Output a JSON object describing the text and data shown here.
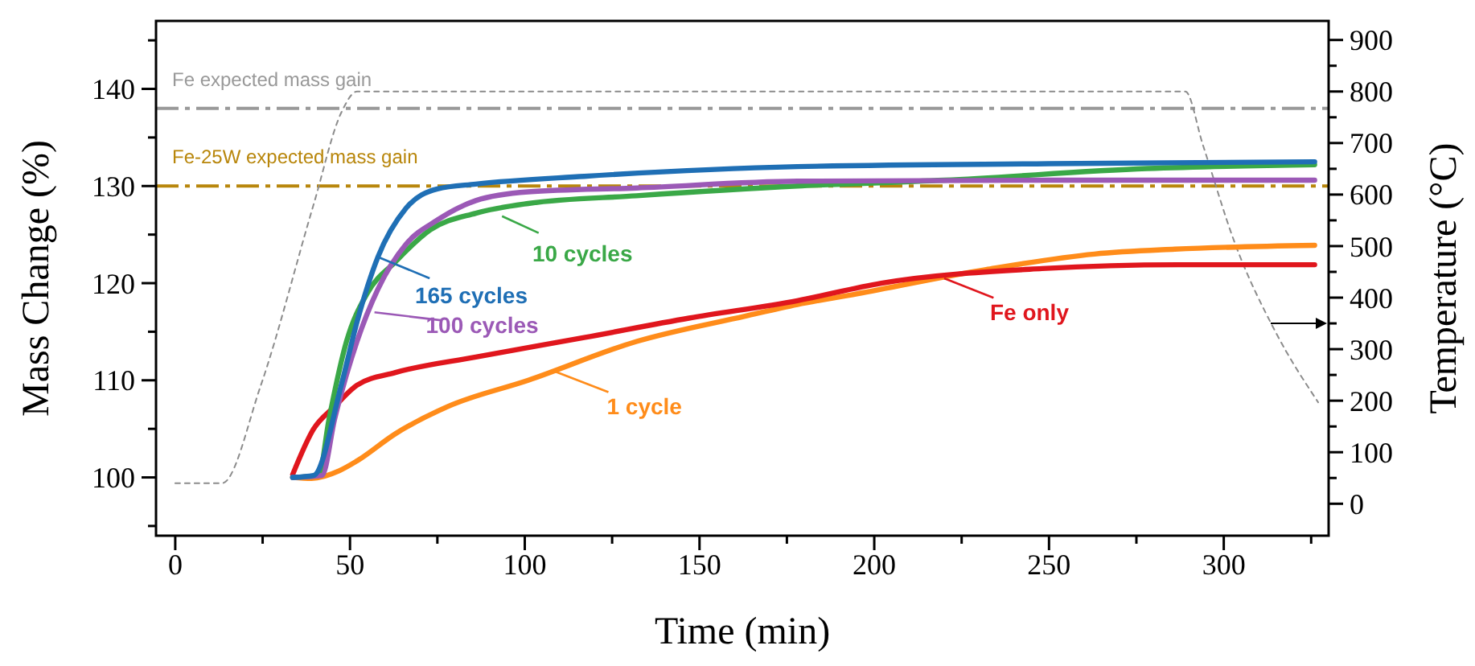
{
  "chart_data": {
    "type": "line",
    "xlabel": "Time (min)",
    "ylabel": "Mass Change (%)",
    "y2label": "Temperature (°C)",
    "xlim": [
      -5.5,
      330
    ],
    "xticks": [
      0,
      {
        "value": 25,
        "label": null
      },
      50,
      {
        "value": 75,
        "label": null
      },
      100,
      {
        "value": 125,
        "label": null
      },
      150,
      {
        "value": 175,
        "label": null
      },
      200,
      {
        "value": 225,
        "label": null
      },
      250,
      {
        "value": 275,
        "label": null
      },
      300,
      {
        "value": 325,
        "label": null
      }
    ],
    "ylim": [
      94,
      147
    ],
    "yticks": [
      {
        "value": 95,
        "label": null
      },
      100,
      {
        "value": 105,
        "label": null
      },
      110,
      {
        "value": 115,
        "label": null
      },
      120,
      {
        "value": 125,
        "label": null
      },
      130,
      {
        "value": 135,
        "label": null
      },
      140,
      {
        "value": 145,
        "label": null
      }
    ],
    "y2lim": [
      -62,
      937
    ],
    "y2ticks": [
      0,
      {
        "value": 50,
        "label": null
      },
      100,
      {
        "value": 150,
        "label": null
      },
      200,
      {
        "value": 250,
        "label": null
      },
      300,
      {
        "value": 350,
        "label": null
      },
      400,
      {
        "value": 450,
        "label": null
      },
      500,
      {
        "value": 550,
        "label": null
      },
      600,
      {
        "value": 650,
        "label": null
      },
      700,
      {
        "value": 750,
        "label": null
      },
      800,
      {
        "value": 850,
        "label": null
      },
      900
    ],
    "grid": false,
    "marker": "none",
    "ref_lines": [
      {
        "axis": "y",
        "value": 138,
        "label": "Fe expected mass gain",
        "color": "#999999",
        "line_style": "dashed"
      },
      {
        "axis": "y",
        "value": 130,
        "label": "Fe-25W expected mass gain",
        "color": "#b8860b",
        "line_style": "dashed"
      }
    ],
    "series": [
      {
        "type": "line",
        "axis": "y2",
        "color": "#8c8c8c",
        "line_style": "dotted",
        "x": [
          0,
          13.4,
          24.4,
          39.6,
          47.5,
          52,
          289,
          294,
          303,
          315,
          327
        ],
        "values": [
          40,
          40,
          228,
          581,
          759,
          800,
          800,
          697,
          509,
          331,
          197
        ]
      },
      {
        "color": "#ff8c1a",
        "x": [
          33.6,
          39,
          47,
          52,
          63,
          78,
          101,
          132,
          163,
          178,
          195,
          232,
          263,
          286,
          326
        ],
        "values": [
          100,
          99.9,
          100.7,
          101.7,
          104.5,
          107.3,
          110,
          114,
          116.6,
          117.8,
          118.9,
          121.4,
          123,
          123.5,
          123.9
        ]
      },
      {
        "color": "#e0161d",
        "x": [
          33.6,
          39.6,
          45.6,
          52,
          63,
          86,
          117,
          147,
          178,
          202,
          248,
          287,
          326
        ],
        "values": [
          100.3,
          105,
          107.3,
          109.5,
          110.8,
          112.4,
          114.4,
          116.4,
          118.2,
          120,
          121.5,
          121.9,
          121.9
        ]
      },
      {
        "color": "#3aa847",
        "x": [
          33.6,
          41,
          44,
          49,
          55,
          63,
          73,
          86,
          101,
          132,
          178,
          220,
          278,
          326
        ],
        "values": [
          100,
          100.2,
          106,
          114,
          119,
          122.2,
          125.5,
          127.2,
          128.2,
          129,
          130,
          130.6,
          131.8,
          132.2
        ]
      },
      {
        "color": "#9b59b6",
        "x": [
          33.6,
          42,
          45.6,
          52,
          58,
          66,
          75,
          86,
          101,
          132,
          178,
          250,
          326
        ],
        "values": [
          100,
          100.2,
          106,
          114,
          119.4,
          124,
          126.5,
          128.5,
          129.4,
          129.8,
          130.5,
          130.6,
          130.6
        ]
      },
      {
        "color": "#1f6fb5",
        "x": [
          33.6,
          39.6,
          47.5,
          52,
          58,
          66,
          75,
          86,
          117,
          178,
          250,
          326
        ],
        "values": [
          100,
          100.2,
          109.5,
          116,
          122.7,
          127.7,
          129.7,
          130.2,
          131,
          132,
          132.3,
          132.5
        ]
      }
    ],
    "annotations": [
      {
        "text": "1 cycle",
        "x": 108,
        "y": 111
      },
      {
        "text": "Fe only",
        "x": 220,
        "y": 120.5
      },
      {
        "text": "10 cycles",
        "x": 93.5,
        "y": 126.9
      },
      {
        "text": "100 cycles",
        "x": 57,
        "y": 117
      },
      {
        "text": "165 cycles",
        "x": 58,
        "y": 122.7
      }
    ]
  }
}
